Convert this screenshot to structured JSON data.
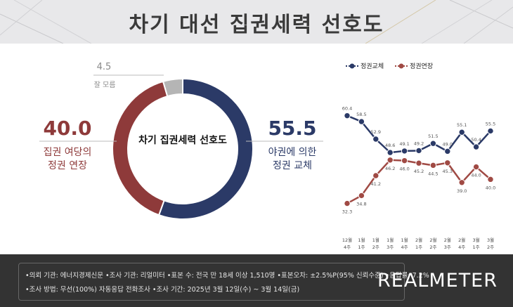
{
  "title": "차기 대선 집권세력 선호도",
  "donut": {
    "center_label": "차기 집권세력 선호도",
    "segments": [
      {
        "name": "야권에 의한 정권 교체",
        "value": 55.5,
        "color": "#2b3a67"
      },
      {
        "name": "집권 여당의 정권 연장",
        "value": 40.0,
        "color": "#8e3a3a"
      },
      {
        "name": "잘 모름",
        "value": 4.5,
        "color": "#b5b5b5"
      }
    ],
    "right_value": "55.5",
    "right_label_1": "야권에 의한",
    "right_label_2": "정권 교체",
    "left_value": "40.0",
    "left_label_1": "집권 여당의",
    "left_label_2": "정권 연장",
    "top_value": "4.5",
    "top_label": "잘 모름"
  },
  "chart_data": {
    "type": "line",
    "categories": [
      "12월 4주",
      "1월 1주",
      "1월 2주",
      "1월 3주",
      "1월 4주",
      "2월 1주",
      "2월 2주",
      "2월 3주",
      "2월 4주",
      "3월 1주",
      "3월 2주"
    ],
    "category_lines": [
      [
        "12월",
        "4주"
      ],
      [
        "1월",
        "1주"
      ],
      [
        "1월",
        "2주"
      ],
      [
        "1월",
        "3주"
      ],
      [
        "1월",
        "4주"
      ],
      [
        "2월",
        "1주"
      ],
      [
        "2월",
        "2주"
      ],
      [
        "2월",
        "3주"
      ],
      [
        "2월",
        "4주"
      ],
      [
        "3월",
        "1주"
      ],
      [
        "3월",
        "2주"
      ]
    ],
    "series": [
      {
        "name": "정권교체",
        "color": "#2b3a67",
        "values": [
          60.4,
          58.5,
          52.9,
          48.6,
          49.1,
          49.2,
          51.5,
          49.0,
          55.1,
          50.4,
          55.5
        ],
        "labels": [
          "60.4",
          "58.5",
          "52.9",
          "48.6",
          "49.1",
          "49.2",
          "51.5",
          "49.0",
          "55.1",
          "50.4",
          "55.5"
        ]
      },
      {
        "name": "정권연장",
        "color": "#a04a44",
        "values": [
          32.3,
          34.8,
          41.2,
          46.2,
          46.0,
          45.2,
          44.5,
          45.3,
          39.0,
          44.0,
          40.0
        ],
        "labels": [
          "32.3",
          "34.8",
          "41.2",
          "46.2",
          "46.0",
          "45.2",
          "44.5",
          "45.3",
          "39.0",
          "44.0",
          "40.0"
        ]
      }
    ]
  },
  "footer": {
    "line1": "•의뢰 기관: 에너지경제신문 •조사 기관: 리얼미터 •표본 수: 전국 만 18세 이상 1,510명 •표본오차: ±2.5%P(95% 신뢰수준) •응답률: 7.2%",
    "line2": "•조사 방법: 무선(100%) 자동응답 전화조사 •조사 기간: 2025년 3월 12일(수) ~ 3월 14일(금)",
    "brand": "REALMETER"
  }
}
